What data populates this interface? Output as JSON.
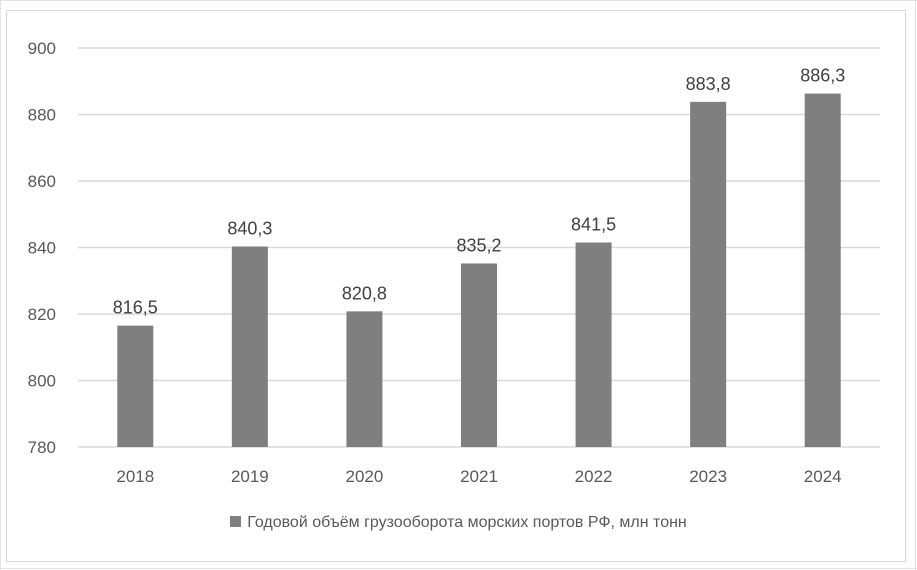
{
  "chart_data": {
    "type": "bar",
    "categories": [
      "2018",
      "2019",
      "2020",
      "2021",
      "2022",
      "2023",
      "2024"
    ],
    "series": [
      {
        "name": "Годовой объём грузооборота морских портов РФ, млн тонн",
        "values": [
          816.5,
          840.3,
          820.8,
          835.2,
          841.5,
          883.8,
          886.3
        ],
        "data_labels": [
          "816,5",
          "840,3",
          "820,8",
          "835,2",
          "841,5",
          "883,8",
          "886,3"
        ]
      }
    ],
    "ylim": [
      780,
      900
    ],
    "yticks": [
      780,
      800,
      820,
      840,
      860,
      880,
      900
    ],
    "ytick_labels": [
      "780",
      "800",
      "820",
      "840",
      "860",
      "880",
      "900"
    ],
    "grid": true,
    "legend_position": "bottom",
    "colors": {
      "bar": "#7f7f7f",
      "grid": "#d9d9d9",
      "text": "#595959"
    }
  }
}
